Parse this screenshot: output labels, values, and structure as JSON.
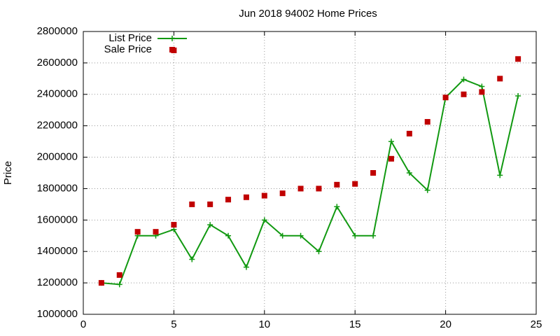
{
  "chart_data": {
    "type": "line",
    "title": "Jun 2018 94002 Home Prices",
    "y_label": "Price",
    "xlim": [
      0,
      25
    ],
    "xticks": [
      0,
      5,
      10,
      15,
      20,
      25
    ],
    "ylim": [
      1000000,
      2800000
    ],
    "yticks": [
      1000000,
      1200000,
      1400000,
      1600000,
      1800000,
      2000000,
      2200000,
      2400000,
      2600000,
      2800000
    ],
    "grid": true,
    "legend": "top-left",
    "series": [
      {
        "name": "List Price",
        "color": "#119911",
        "style": "linespoints",
        "x": [
          1,
          2,
          3,
          4,
          5,
          6,
          7,
          8,
          9,
          10,
          11,
          12,
          13,
          14,
          15,
          16,
          17,
          18,
          19,
          20,
          21,
          22,
          23,
          24
        ],
        "values": [
          1200000,
          1190000,
          1500000,
          1500000,
          1540000,
          1350000,
          1570000,
          1500000,
          1300000,
          1600000,
          1500000,
          1500000,
          1400000,
          1685000,
          1500000,
          1500000,
          2100000,
          1900000,
          1790000,
          2380000,
          2495000,
          2450000,
          1885000,
          2390000
        ]
      },
      {
        "name": "Sale Price",
        "color": "#c00000",
        "style": "points",
        "x": [
          1,
          2,
          3,
          4,
          5,
          5,
          6,
          7,
          8,
          9,
          10,
          11,
          12,
          13,
          14,
          15,
          16,
          17,
          18,
          19,
          20,
          21,
          22,
          23,
          24
        ],
        "values": [
          1200000,
          1250000,
          1525000,
          1525000,
          1570000,
          2680000,
          1700000,
          1700000,
          1730000,
          1745000,
          1755000,
          1770000,
          1800000,
          1800000,
          1825000,
          1830000,
          1900000,
          1990000,
          2150000,
          2225000,
          2380000,
          2400000,
          2415000,
          2500000,
          2625000
        ]
      }
    ]
  }
}
